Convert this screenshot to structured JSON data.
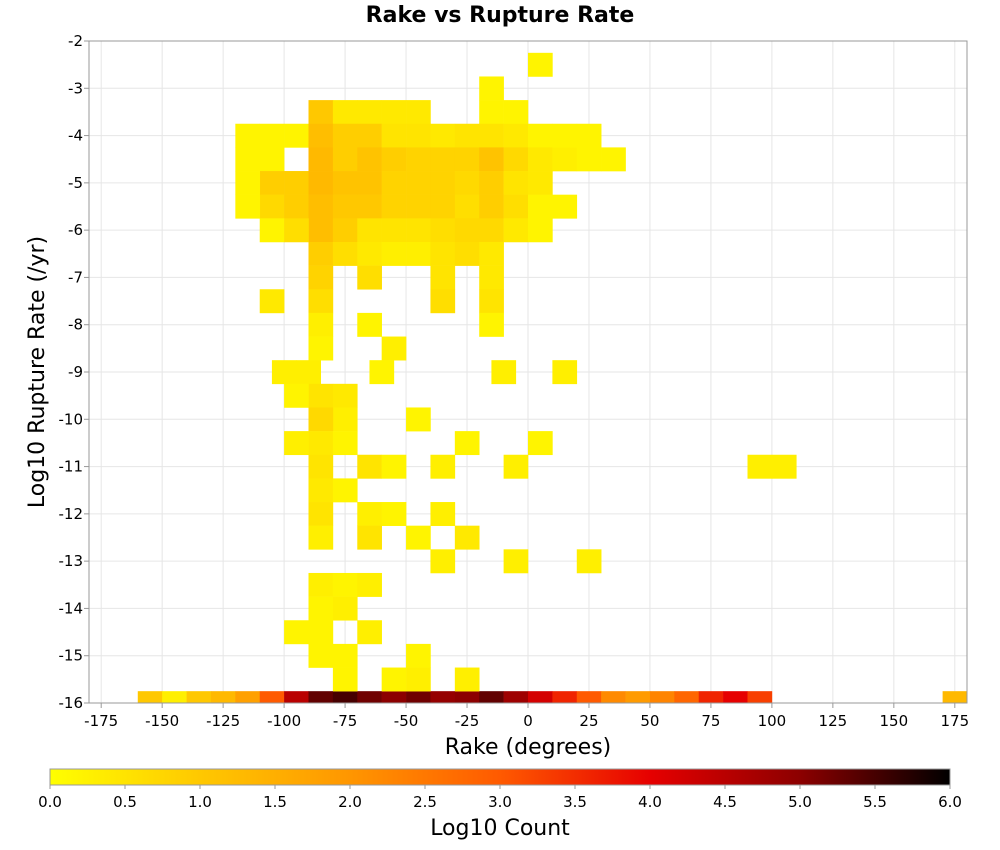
{
  "chart_data": {
    "type": "heatmap",
    "title": "Rake vs Rupture Rate",
    "xlabel": "Rake (degrees)",
    "ylabel": "Log10 Rupture Rate (/yr)",
    "xlim": [
      -180,
      180
    ],
    "ylim": [
      -16,
      -2
    ],
    "x_ticks": [
      -175,
      -150,
      -125,
      -100,
      -75,
      -50,
      -25,
      0,
      25,
      50,
      75,
      100,
      125,
      150,
      175
    ],
    "y_ticks": [
      -16,
      -15,
      -14,
      -13,
      -12,
      -11,
      -10,
      -9,
      -8,
      -7,
      -6,
      -5,
      -4,
      -3,
      -2
    ],
    "grid": true,
    "bin_width_x": 10,
    "bin_width_y": 0.5,
    "colorbar": {
      "label": "Log10 Count",
      "min": 0.0,
      "max": 6.0,
      "ticks": [
        "0.0",
        "0.5",
        "1.0",
        "1.5",
        "2.0",
        "2.5",
        "3.0",
        "3.5",
        "4.0",
        "4.5",
        "5.0",
        "5.5",
        "6.0"
      ],
      "colors": [
        "#ffff00",
        "#ffc800",
        "#ff9600",
        "#ff5a00",
        "#e60000",
        "#8c0000",
        "#000000"
      ]
    },
    "cells": [
      {
        "x": -155,
        "y": -16,
        "v": 1.0
      },
      {
        "x": -145,
        "y": -16,
        "v": 0.3
      },
      {
        "x": -135,
        "y": -16,
        "v": 1.0
      },
      {
        "x": -125,
        "y": -16,
        "v": 1.3
      },
      {
        "x": -115,
        "y": -16,
        "v": 1.8
      },
      {
        "x": -105,
        "y": -16,
        "v": 3.0
      },
      {
        "x": -95,
        "y": -16,
        "v": 4.5
      },
      {
        "x": -85,
        "y": -16,
        "v": 5.3
      },
      {
        "x": -75,
        "y": -16,
        "v": 5.5
      },
      {
        "x": -65,
        "y": -16,
        "v": 5.2
      },
      {
        "x": -55,
        "y": -16,
        "v": 5.0
      },
      {
        "x": -45,
        "y": -16,
        "v": 5.2
      },
      {
        "x": -35,
        "y": -16,
        "v": 4.9
      },
      {
        "x": -25,
        "y": -16,
        "v": 5.0
      },
      {
        "x": -15,
        "y": -16,
        "v": 5.3
      },
      {
        "x": -5,
        "y": -16,
        "v": 4.8
      },
      {
        "x": 5,
        "y": -16,
        "v": 4.2
      },
      {
        "x": 15,
        "y": -16,
        "v": 3.6
      },
      {
        "x": 25,
        "y": -16,
        "v": 3.0
      },
      {
        "x": 35,
        "y": -16,
        "v": 2.2
      },
      {
        "x": 45,
        "y": -16,
        "v": 1.9
      },
      {
        "x": 55,
        "y": -16,
        "v": 2.3
      },
      {
        "x": 65,
        "y": -16,
        "v": 2.8
      },
      {
        "x": 75,
        "y": -16,
        "v": 3.6
      },
      {
        "x": 85,
        "y": -16,
        "v": 4.0
      },
      {
        "x": 95,
        "y": -16,
        "v": 3.3
      },
      {
        "x": 175,
        "y": -16,
        "v": 1.3
      },
      {
        "x": 5,
        "y": -2.5,
        "v": 0.2
      },
      {
        "x": -15,
        "y": -3.0,
        "v": 0.2
      },
      {
        "x": -15,
        "y": -3.5,
        "v": 0.2
      },
      {
        "x": -5,
        "y": -3.5,
        "v": 0.2
      },
      {
        "x": -85,
        "y": -3.5,
        "v": 1.0
      },
      {
        "x": -75,
        "y": -3.5,
        "v": 0.4
      },
      {
        "x": -65,
        "y": -3.5,
        "v": 0.4
      },
      {
        "x": -55,
        "y": -3.5,
        "v": 0.4
      },
      {
        "x": -45,
        "y": -3.5,
        "v": 0.4
      },
      {
        "x": -95,
        "y": -4.0,
        "v": 0.2
      },
      {
        "x": -85,
        "y": -4.0,
        "v": 1.2
      },
      {
        "x": -75,
        "y": -4.0,
        "v": 0.9
      },
      {
        "x": -65,
        "y": -4.0,
        "v": 0.9
      },
      {
        "x": -55,
        "y": -4.0,
        "v": 0.5
      },
      {
        "x": -45,
        "y": -4.0,
        "v": 0.5
      },
      {
        "x": -35,
        "y": -4.0,
        "v": 0.4
      },
      {
        "x": -25,
        "y": -4.0,
        "v": 0.5
      },
      {
        "x": -15,
        "y": -4.0,
        "v": 0.5
      },
      {
        "x": -5,
        "y": -4.0,
        "v": 0.4
      },
      {
        "x": 5,
        "y": -4.0,
        "v": 0.2
      },
      {
        "x": -115,
        "y": -4.5,
        "v": 0.2
      },
      {
        "x": -105,
        "y": -4.5,
        "v": 0.2
      },
      {
        "x": -85,
        "y": -4.5,
        "v": 1.3
      },
      {
        "x": -75,
        "y": -4.5,
        "v": 0.9
      },
      {
        "x": -65,
        "y": -4.5,
        "v": 1.1
      },
      {
        "x": -55,
        "y": -4.5,
        "v": 0.9
      },
      {
        "x": -45,
        "y": -4.5,
        "v": 0.8
      },
      {
        "x": -35,
        "y": -4.5,
        "v": 0.8
      },
      {
        "x": -25,
        "y": -4.5,
        "v": 0.8
      },
      {
        "x": -15,
        "y": -4.5,
        "v": 1.1
      },
      {
        "x": -5,
        "y": -4.5,
        "v": 0.7
      },
      {
        "x": 5,
        "y": -4.5,
        "v": 0.4
      },
      {
        "x": 15,
        "y": -4.5,
        "v": 0.3
      },
      {
        "x": 25,
        "y": -4.5,
        "v": 0.2
      },
      {
        "x": 35,
        "y": -4.5,
        "v": 0.2
      },
      {
        "x": -115,
        "y": -4.0,
        "v": 0.2
      },
      {
        "x": -105,
        "y": -4.0,
        "v": 0.2
      },
      {
        "x": 15,
        "y": -4.0,
        "v": 0.2
      },
      {
        "x": 25,
        "y": -4.0,
        "v": 0.2
      },
      {
        "x": -105,
        "y": -5.0,
        "v": 0.9
      },
      {
        "x": -95,
        "y": -5.0,
        "v": 0.9
      },
      {
        "x": -85,
        "y": -5.0,
        "v": 1.3
      },
      {
        "x": -75,
        "y": -5.0,
        "v": 1.1
      },
      {
        "x": -65,
        "y": -5.0,
        "v": 1.1
      },
      {
        "x": -55,
        "y": -5.0,
        "v": 0.8
      },
      {
        "x": -45,
        "y": -5.0,
        "v": 0.8
      },
      {
        "x": -35,
        "y": -5.0,
        "v": 0.8
      },
      {
        "x": -25,
        "y": -5.0,
        "v": 0.7
      },
      {
        "x": -15,
        "y": -5.0,
        "v": 0.9
      },
      {
        "x": -5,
        "y": -5.0,
        "v": 0.5
      },
      {
        "x": 5,
        "y": -5.0,
        "v": 0.4
      },
      {
        "x": -115,
        "y": -5.0,
        "v": 0.2
      },
      {
        "x": -105,
        "y": -5.5,
        "v": 0.7
      },
      {
        "x": -95,
        "y": -5.5,
        "v": 0.9
      },
      {
        "x": -85,
        "y": -5.5,
        "v": 1.2
      },
      {
        "x": -75,
        "y": -5.5,
        "v": 1.0
      },
      {
        "x": -65,
        "y": -5.5,
        "v": 1.0
      },
      {
        "x": -55,
        "y": -5.5,
        "v": 0.8
      },
      {
        "x": -45,
        "y": -5.5,
        "v": 0.8
      },
      {
        "x": -35,
        "y": -5.5,
        "v": 0.8
      },
      {
        "x": -25,
        "y": -5.5,
        "v": 0.6
      },
      {
        "x": -15,
        "y": -5.5,
        "v": 0.9
      },
      {
        "x": -5,
        "y": -5.5,
        "v": 0.6
      },
      {
        "x": 5,
        "y": -5.5,
        "v": 0.2
      },
      {
        "x": 15,
        "y": -5.5,
        "v": 0.2
      },
      {
        "x": -115,
        "y": -5.5,
        "v": 0.2
      },
      {
        "x": -85,
        "y": -6.0,
        "v": 1.2
      },
      {
        "x": -75,
        "y": -6.0,
        "v": 0.9
      },
      {
        "x": -65,
        "y": -6.0,
        "v": 0.5
      },
      {
        "x": -55,
        "y": -6.0,
        "v": 0.5
      },
      {
        "x": -45,
        "y": -6.0,
        "v": 0.5
      },
      {
        "x": -35,
        "y": -6.0,
        "v": 0.6
      },
      {
        "x": -25,
        "y": -6.0,
        "v": 0.7
      },
      {
        "x": -15,
        "y": -6.0,
        "v": 0.7
      },
      {
        "x": -5,
        "y": -6.0,
        "v": 0.4
      },
      {
        "x": 5,
        "y": -6.0,
        "v": 0.2
      },
      {
        "x": -105,
        "y": -6.0,
        "v": 0.2
      },
      {
        "x": -95,
        "y": -6.0,
        "v": 0.6
      },
      {
        "x": -85,
        "y": -6.5,
        "v": 0.9
      },
      {
        "x": -75,
        "y": -6.5,
        "v": 0.6
      },
      {
        "x": -65,
        "y": -6.5,
        "v": 0.4
      },
      {
        "x": -55,
        "y": -6.5,
        "v": 0.3
      },
      {
        "x": -45,
        "y": -6.5,
        "v": 0.3
      },
      {
        "x": -35,
        "y": -6.5,
        "v": 0.5
      },
      {
        "x": -25,
        "y": -6.5,
        "v": 0.6
      },
      {
        "x": -15,
        "y": -6.5,
        "v": 0.4
      },
      {
        "x": -85,
        "y": -7.0,
        "v": 0.8
      },
      {
        "x": -65,
        "y": -7.0,
        "v": 0.6
      },
      {
        "x": -35,
        "y": -7.0,
        "v": 0.5
      },
      {
        "x": -15,
        "y": -7.0,
        "v": 0.4
      },
      {
        "x": -105,
        "y": -7.5,
        "v": 0.4
      },
      {
        "x": -85,
        "y": -7.5,
        "v": 0.6
      },
      {
        "x": -35,
        "y": -7.5,
        "v": 0.6
      },
      {
        "x": -15,
        "y": -7.5,
        "v": 0.5
      },
      {
        "x": -85,
        "y": -8.0,
        "v": 0.3
      },
      {
        "x": -65,
        "y": -8.0,
        "v": 0.2
      },
      {
        "x": -15,
        "y": -8.0,
        "v": 0.2
      },
      {
        "x": -85,
        "y": -8.5,
        "v": 0.2
      },
      {
        "x": -55,
        "y": -8.5,
        "v": 0.3
      },
      {
        "x": -100,
        "y": -9.0,
        "v": 0.3
      },
      {
        "x": -90,
        "y": -9.0,
        "v": 0.3
      },
      {
        "x": -60,
        "y": -9.0,
        "v": 0.2
      },
      {
        "x": -10,
        "y": -9.0,
        "v": 0.3
      },
      {
        "x": 15,
        "y": -9.0,
        "v": 0.3
      },
      {
        "x": -85,
        "y": -9.5,
        "v": 0.5
      },
      {
        "x": -95,
        "y": -9.5,
        "v": 0.2
      },
      {
        "x": -75,
        "y": -9.5,
        "v": 0.4
      },
      {
        "x": -75,
        "y": -10.0,
        "v": 0.3
      },
      {
        "x": -45,
        "y": -10.0,
        "v": 0.2
      },
      {
        "x": -85,
        "y": -10.0,
        "v": 0.7
      },
      {
        "x": -85,
        "y": -10.5,
        "v": 0.4
      },
      {
        "x": -95,
        "y": -10.5,
        "v": 0.3
      },
      {
        "x": -75,
        "y": -10.5,
        "v": 0.2
      },
      {
        "x": -25,
        "y": -10.5,
        "v": 0.2
      },
      {
        "x": 5,
        "y": -10.5,
        "v": 0.2
      },
      {
        "x": -85,
        "y": -11.0,
        "v": 0.5
      },
      {
        "x": -65,
        "y": -11.0,
        "v": 0.5
      },
      {
        "x": -55,
        "y": -11.0,
        "v": 0.2
      },
      {
        "x": -35,
        "y": -11.0,
        "v": 0.3
      },
      {
        "x": -5,
        "y": -11.0,
        "v": 0.3
      },
      {
        "x": 95,
        "y": -11.0,
        "v": 0.3
      },
      {
        "x": 105,
        "y": -11.0,
        "v": 0.3
      },
      {
        "x": -85,
        "y": -11.5,
        "v": 0.4
      },
      {
        "x": -75,
        "y": -11.5,
        "v": 0.2
      },
      {
        "x": -85,
        "y": -12.0,
        "v": 0.5
      },
      {
        "x": -65,
        "y": -12.0,
        "v": 0.3
      },
      {
        "x": -55,
        "y": -12.0,
        "v": 0.2
      },
      {
        "x": -35,
        "y": -12.0,
        "v": 0.3
      },
      {
        "x": -85,
        "y": -12.5,
        "v": 0.3
      },
      {
        "x": -65,
        "y": -12.5,
        "v": 0.5
      },
      {
        "x": -45,
        "y": -12.5,
        "v": 0.2
      },
      {
        "x": -25,
        "y": -12.5,
        "v": 0.4
      },
      {
        "x": -35,
        "y": -13.0,
        "v": 0.3
      },
      {
        "x": -5,
        "y": -13.0,
        "v": 0.3
      },
      {
        "x": 25,
        "y": -13.0,
        "v": 0.3
      },
      {
        "x": -85,
        "y": -13.5,
        "v": 0.3
      },
      {
        "x": -75,
        "y": -13.5,
        "v": 0.2
      },
      {
        "x": -65,
        "y": -13.5,
        "v": 0.3
      },
      {
        "x": -85,
        "y": -14.0,
        "v": 0.2
      },
      {
        "x": -75,
        "y": -14.0,
        "v": 0.3
      },
      {
        "x": -85,
        "y": -14.5,
        "v": 0.2
      },
      {
        "x": -95,
        "y": -14.5,
        "v": 0.2
      },
      {
        "x": -65,
        "y": -14.5,
        "v": 0.3
      },
      {
        "x": -85,
        "y": -15.0,
        "v": 0.2
      },
      {
        "x": -45,
        "y": -15.0,
        "v": 0.2
      },
      {
        "x": -75,
        "y": -15.0,
        "v": 0.2
      },
      {
        "x": -75,
        "y": -15.5,
        "v": 0.2
      },
      {
        "x": -45,
        "y": -15.5,
        "v": 0.3
      },
      {
        "x": -55,
        "y": -15.5,
        "v": 0.2
      },
      {
        "x": -25,
        "y": -15.5,
        "v": 0.3
      }
    ]
  }
}
